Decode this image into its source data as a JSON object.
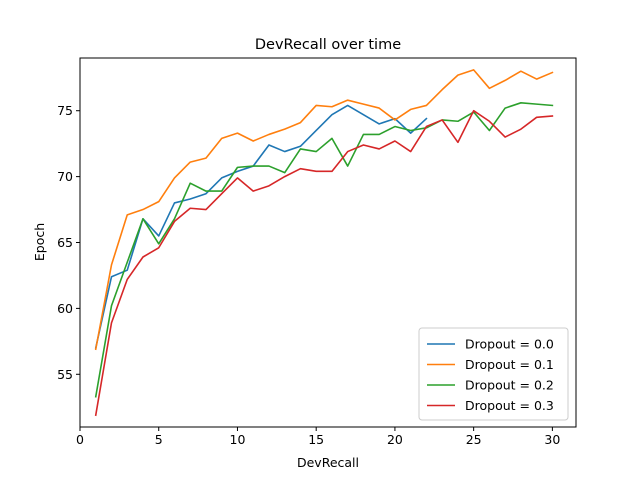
{
  "chart_data": {
    "type": "line",
    "title": "DevRecall over time",
    "xlabel": "DevRecall",
    "ylabel": "Epoch",
    "xlim": [
      0,
      31.5
    ],
    "ylim": [
      51,
      79
    ],
    "xticks": [
      0,
      5,
      10,
      15,
      20,
      25,
      30
    ],
    "yticks": [
      55,
      60,
      65,
      70,
      75
    ],
    "grid": false,
    "legend_position": "lower-right",
    "series": [
      {
        "name": "Dropout = 0.0",
        "color": "#1f77b4",
        "x": [
          1,
          2,
          3,
          4,
          5,
          6,
          7,
          8,
          9,
          10,
          11,
          12,
          13,
          14,
          15,
          16,
          17,
          18,
          19,
          20,
          21,
          22
        ],
        "values": [
          57.0,
          62.4,
          62.9,
          66.8,
          65.5,
          68.0,
          68.3,
          68.7,
          69.9,
          70.4,
          70.8,
          72.4,
          71.9,
          72.3,
          73.5,
          74.7,
          75.4,
          74.7,
          74.0,
          74.4,
          73.3,
          74.4
        ]
      },
      {
        "name": "Dropout = 0.1",
        "color": "#ff7f0e",
        "x": [
          1,
          2,
          3,
          4,
          5,
          6,
          7,
          8,
          9,
          10,
          11,
          12,
          13,
          14,
          15,
          16,
          17,
          18,
          19,
          20,
          21,
          22,
          23,
          24,
          25,
          26,
          27,
          28,
          29,
          30
        ],
        "values": [
          56.9,
          63.3,
          67.1,
          67.5,
          68.1,
          69.9,
          71.1,
          71.4,
          72.9,
          73.3,
          72.7,
          73.2,
          73.6,
          74.1,
          75.4,
          75.3,
          75.8,
          75.5,
          75.2,
          74.3,
          75.1,
          75.4,
          76.6,
          77.7,
          78.1,
          76.7,
          77.3,
          78.0,
          77.4,
          77.9
        ]
      },
      {
        "name": "Dropout = 0.2",
        "color": "#2ca02c",
        "x": [
          1,
          2,
          3,
          4,
          5,
          6,
          7,
          8,
          9,
          10,
          11,
          12,
          13,
          14,
          15,
          16,
          17,
          18,
          19,
          20,
          21,
          22,
          23,
          24,
          25,
          26,
          27,
          28,
          29,
          30
        ],
        "values": [
          53.3,
          60.2,
          63.5,
          66.8,
          64.9,
          66.8,
          69.5,
          68.9,
          68.9,
          70.7,
          70.8,
          70.8,
          70.3,
          72.1,
          71.9,
          72.9,
          70.8,
          73.2,
          73.2,
          73.8,
          73.5,
          73.7,
          74.3,
          74.2,
          74.9,
          73.5,
          75.2,
          75.6,
          75.5,
          75.4
        ]
      },
      {
        "name": "Dropout = 0.3",
        "color": "#d62728",
        "x": [
          1,
          2,
          3,
          4,
          5,
          6,
          7,
          8,
          9,
          10,
          11,
          12,
          13,
          14,
          15,
          16,
          17,
          18,
          19,
          20,
          21,
          22,
          23,
          24,
          25,
          26,
          27,
          28,
          29,
          30
        ],
        "values": [
          51.9,
          58.9,
          62.2,
          63.9,
          64.6,
          66.6,
          67.6,
          67.5,
          68.7,
          69.9,
          68.9,
          69.3,
          70.0,
          70.6,
          70.4,
          70.4,
          71.9,
          72.4,
          72.1,
          72.7,
          71.9,
          73.8,
          74.3,
          72.6,
          75.0,
          74.2,
          73.0,
          73.6,
          74.5,
          74.6
        ]
      }
    ]
  }
}
